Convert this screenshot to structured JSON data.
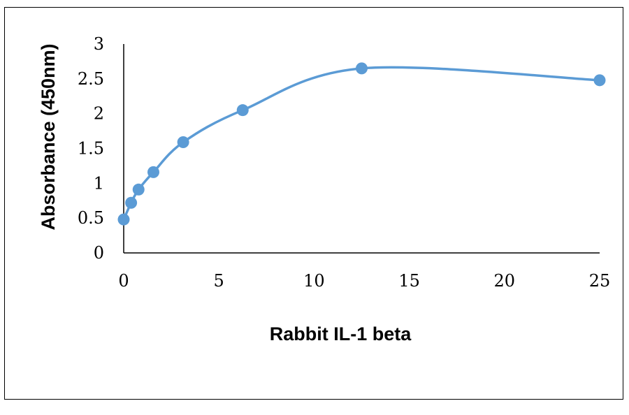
{
  "chart_data": {
    "type": "line",
    "xlabel": "Rabbit IL-1 beta",
    "ylabel": "Absorbance (450nm)",
    "xlim": [
      0,
      25
    ],
    "ylim": [
      0,
      3
    ],
    "x_ticks": [
      "0",
      "5",
      "10",
      "15",
      "20",
      "25"
    ],
    "y_ticks": [
      "0",
      "0.5",
      "1",
      "1.5",
      "2",
      "2.5",
      "3"
    ],
    "grid": false,
    "legend": "none",
    "series": [
      {
        "x": [
          0,
          0.39,
          0.78,
          1.56,
          3.125,
          6.25,
          12.5,
          25
        ],
        "y": [
          0.48,
          0.72,
          0.91,
          1.16,
          1.59,
          2.05,
          2.65,
          2.48
        ],
        "color": "#5b9bd5",
        "smooth": true
      }
    ]
  }
}
